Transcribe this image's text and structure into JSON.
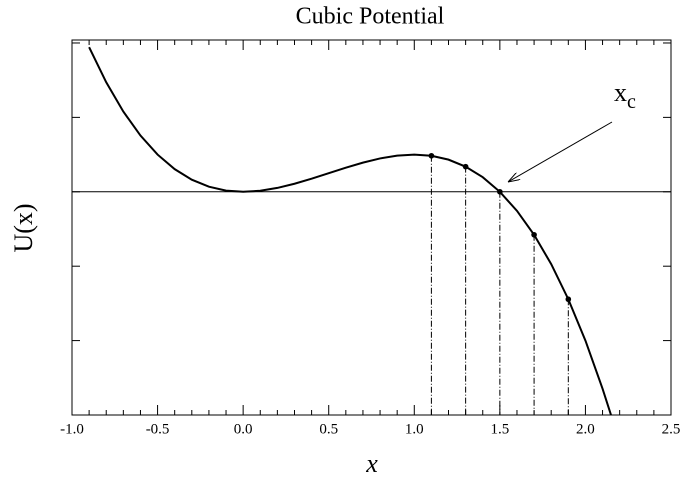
{
  "chart_data": {
    "type": "line",
    "title": "Cubic Potential",
    "x_label": "x",
    "y_label": "U(x)",
    "x": [
      -0.9,
      -0.8,
      -0.7,
      -0.6,
      -0.5,
      -0.4,
      -0.3,
      -0.2,
      -0.1,
      0,
      0.1,
      0.2,
      0.3,
      0.4,
      0.5,
      0.6,
      0.7,
      0.8,
      0.9,
      1.0,
      1.1,
      1.2,
      1.3,
      1.4,
      1.5,
      1.6,
      1.7,
      1.8,
      1.9,
      2.0,
      2.1,
      2.15
    ],
    "series": [
      {
        "name": "U(x)",
        "color": "#000000",
        "values": [
          1.296,
          0.9813,
          0.7187,
          0.504,
          0.3333,
          0.2027,
          0.108,
          0.0453,
          0.0107,
          0,
          0.0093,
          0.0347,
          0.072,
          0.1173,
          0.1667,
          0.216,
          0.2613,
          0.2987,
          0.324,
          0.3333,
          0.3227,
          0.288,
          0.2253,
          0.1307,
          0,
          -0.1707,
          -0.3853,
          -0.648,
          -0.9627,
          -1.3333,
          -1.764,
          -2.0025
        ]
      }
    ],
    "points": {
      "x": [
        1.1,
        1.3,
        1.5,
        1.7,
        1.9
      ],
      "values": [
        0.3227,
        0.2253,
        0,
        -0.3853,
        -0.9627
      ]
    },
    "annotation": "x",
    "annotation_subscript": "c",
    "xlim": [
      -1.0,
      2.5
    ],
    "xticks": [
      {
        "value": -1.0,
        "label": "-1.0"
      },
      -0.5,
      {
        "value": 0,
        "label": "0.0"
      },
      0.5,
      {
        "value": 1.0,
        "label": "1.0"
      },
      1.5,
      {
        "value": 2.0,
        "label": "2.0"
      },
      2.5
    ],
    "ylim": [
      -2.0,
      1.36
    ],
    "yticks": [
      -1.3333,
      -0.6667,
      0,
      0.6667,
      1.3333
    ]
  }
}
